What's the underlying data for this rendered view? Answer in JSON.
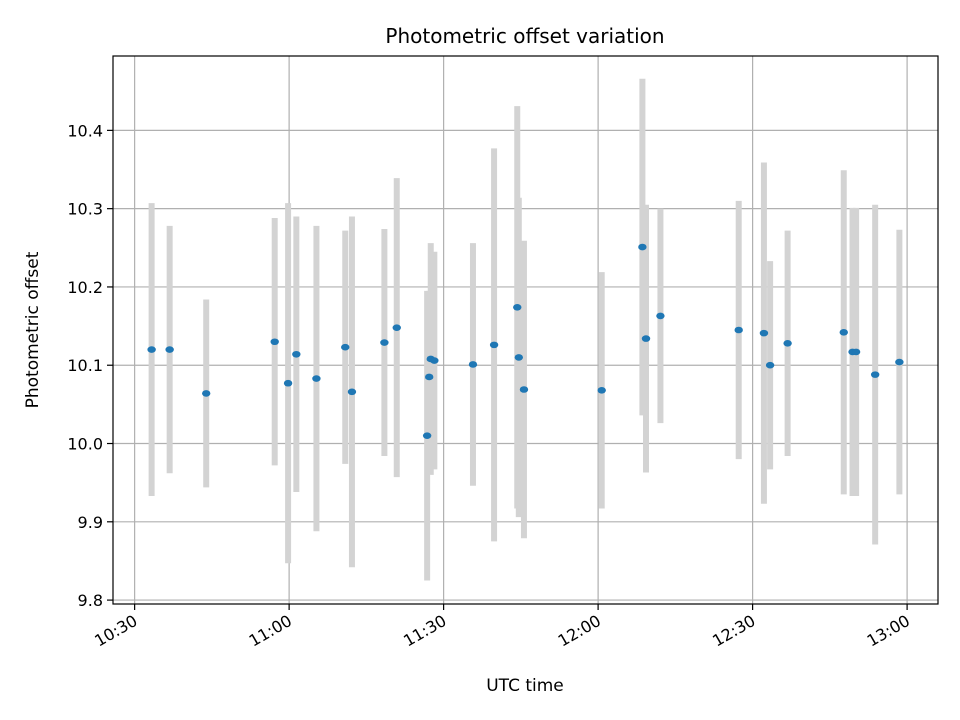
{
  "chart_data": {
    "type": "scatter",
    "title": "Photometric offset variation",
    "xlabel": "UTC time",
    "ylabel": "Photometric offset",
    "x_ticks": [
      "10:30",
      "11:00",
      "11:30",
      "12:00",
      "12:30",
      "13:00"
    ],
    "y_ticks": [
      "9.8",
      "9.9",
      "10.0",
      "10.1",
      "10.2",
      "10.3",
      "10.4"
    ],
    "xlim": [
      "10:25.8",
      "13:06.0"
    ],
    "ylim": [
      9.795,
      10.495
    ],
    "grid": true,
    "colors": {
      "point": "#1f77b4",
      "errorbar": "#d3d3d3",
      "grid": "#b0b0b0"
    },
    "points": [
      {
        "x": "10:33.3",
        "y": 10.12,
        "err": 0.187
      },
      {
        "x": "10:36.8",
        "y": 10.12,
        "err": 0.158
      },
      {
        "x": "10:43.9",
        "y": 10.064,
        "err": 0.12
      },
      {
        "x": "10:57.2",
        "y": 10.13,
        "err": 0.158
      },
      {
        "x": "10:59.8",
        "y": 10.077,
        "err": 0.23
      },
      {
        "x": "11:01.4",
        "y": 10.114,
        "err": 0.176
      },
      {
        "x": "11:05.3",
        "y": 10.083,
        "err": 0.195
      },
      {
        "x": "11:10.9",
        "y": 10.123,
        "err": 0.149
      },
      {
        "x": "11:12.2",
        "y": 10.066,
        "err": 0.224
      },
      {
        "x": "11:18.5",
        "y": 10.129,
        "err": 0.145
      },
      {
        "x": "11:20.9",
        "y": 10.148,
        "err": 0.191
      },
      {
        "x": "11:26.8",
        "y": 10.01,
        "err": 0.185
      },
      {
        "x": "11:27.2",
        "y": 10.085,
        "err": 0.11
      },
      {
        "x": "11:27.5",
        "y": 10.108,
        "err": 0.148
      },
      {
        "x": "11:28.2",
        "y": 10.106,
        "err": 0.139
      },
      {
        "x": "11:35.7",
        "y": 10.101,
        "err": 0.155
      },
      {
        "x": "11:39.8",
        "y": 10.126,
        "err": 0.251
      },
      {
        "x": "11:44.3",
        "y": 10.174,
        "err": 0.257
      },
      {
        "x": "11:44.6",
        "y": 10.11,
        "err": 0.204
      },
      {
        "x": "11:45.6",
        "y": 10.069,
        "err": 0.19
      },
      {
        "x": "12:00.7",
        "y": 10.068,
        "err": 0.151
      },
      {
        "x": "12:08.6",
        "y": 10.251,
        "err": 0.215
      },
      {
        "x": "12:09.3",
        "y": 10.134,
        "err": 0.171
      },
      {
        "x": "12:12.1",
        "y": 10.163,
        "err": 0.137
      },
      {
        "x": "12:27.3",
        "y": 10.145,
        "err": 0.165
      },
      {
        "x": "12:32.2",
        "y": 10.141,
        "err": 0.218
      },
      {
        "x": "12:33.4",
        "y": 10.1,
        "err": 0.133
      },
      {
        "x": "12:36.8",
        "y": 10.128,
        "err": 0.144
      },
      {
        "x": "12:47.7",
        "y": 10.142,
        "err": 0.207
      },
      {
        "x": "12:49.4",
        "y": 10.117,
        "err": 0.184
      },
      {
        "x": "12:50.1",
        "y": 10.117,
        "err": 0.184
      },
      {
        "x": "12:53.8",
        "y": 10.088,
        "err": 0.217
      },
      {
        "x": "12:58.5",
        "y": 10.104,
        "err": 0.169
      }
    ]
  }
}
